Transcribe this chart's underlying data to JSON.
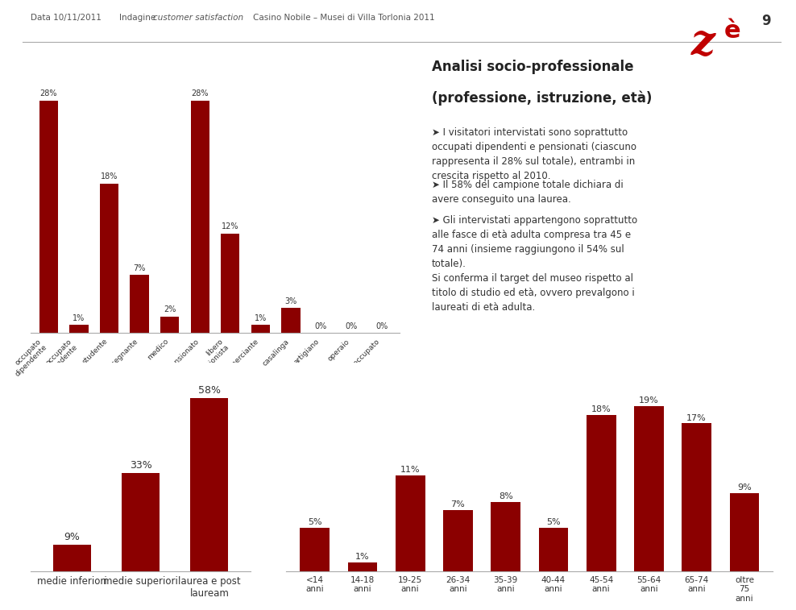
{
  "bar_color": "#8B0000",
  "bg_color": "#FFFFFF",
  "header_line_color": "#AAAAAA",
  "text_color": "#333333",
  "header_date": "Data 10/11/2011",
  "page_number": "9",
  "chart1_categories": [
    "occupato\ndipendente",
    "occupato\nindipendente",
    "studente",
    "insegnante",
    "medico",
    "pensionato",
    "libero\nprofessionista",
    "commerciante",
    "casalinga",
    "artigiano",
    "operaio",
    "disoccupato"
  ],
  "chart1_values": [
    28,
    1,
    18,
    7,
    2,
    28,
    12,
    1,
    3,
    0,
    0,
    0
  ],
  "chart1_labels": [
    "28%",
    "1%",
    "18%",
    "7%",
    "2%",
    "28%",
    "12%",
    "1%",
    "3%",
    "0%",
    "0%",
    "0%"
  ],
  "chart2_categories": [
    "medie inferiori",
    "medie superiori",
    "laurea e post\nlauream"
  ],
  "chart2_values": [
    9,
    33,
    58
  ],
  "chart2_labels": [
    "9%",
    "33%",
    "58%"
  ],
  "chart3_categories": [
    "<14\nanni",
    "14-18\nanni",
    "19-25\nanni",
    "26-34\nanni",
    "35-39\nanni",
    "40-44\nanni",
    "45-54\nanni",
    "55-64\nanni",
    "65-74\nanni",
    "oltre\n75\nanni"
  ],
  "chart3_values": [
    5,
    1,
    11,
    7,
    8,
    5,
    18,
    19,
    17,
    9
  ],
  "chart3_labels": [
    "5%",
    "1%",
    "11%",
    "7%",
    "8%",
    "5%",
    "18%",
    "19%",
    "17%",
    "9%"
  ],
  "title_line1": "Analisi socio-professionale",
  "title_line2": "(professione, istruzione, età)",
  "body_text1": "➤ I visitatori intervistati sono soprattutto\noccupati dipendenti e pensionati (ciascuno\nrappresenta il 28% sul totale), entrambi in\ncrescita rispetto al 2010.",
  "body_text2": "➤ Il 58% del campione totale dichiara di\navere conseguito una laurea.",
  "body_text3": "➤ Gli intervistati appartengono soprattutto\nalle fasce di età adulta compresa tra 45 e\n74 anni (insieme raggiungono il 54% sul\ntotale).",
  "body_text4": "Si conferma il target del museo rispetto al\ntitolo di studio ed età, ovvero prevalgono i\nlaureati di età adulta."
}
